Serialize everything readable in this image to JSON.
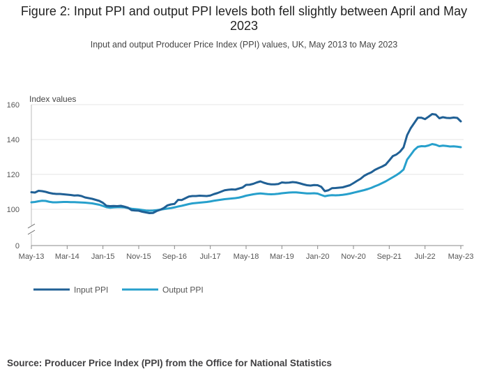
{
  "title": "Figure 2: Input PPI and output PPI levels both fell slightly between April and May 2023",
  "subtitle": "Input and output Producer Price Index (PPI) values, UK, May 2013 to May 2023",
  "source": "Source: Producer Price Index (PPI) from the Office for National Statistics",
  "chart_data": {
    "type": "line",
    "title": "Figure 2: Input PPI and output PPI levels both fell slightly between April and May 2023",
    "ylabel": "Index values",
    "xlabel": "",
    "ylim": [
      0,
      160
    ],
    "axis_break": true,
    "yticks": [
      0,
      100,
      120,
      140,
      160
    ],
    "xtick_labels": [
      "May-13",
      "Mar-14",
      "Jan-15",
      "Nov-15",
      "Sep-16",
      "Jul-17",
      "May-18",
      "Mar-19",
      "Jan-20",
      "Nov-20",
      "Sep-21",
      "Jul-22",
      "May-23"
    ],
    "xtick_index": [
      0,
      10,
      20,
      30,
      40,
      50,
      60,
      70,
      80,
      90,
      100,
      110,
      120
    ],
    "legend_position": "bottom-left",
    "grid": true,
    "series": [
      {
        "name": "Input PPI",
        "color": "#206095",
        "values": [
          109.8,
          109.6,
          110.6,
          110.4,
          110.0,
          109.4,
          109.0,
          108.8,
          108.8,
          108.6,
          108.4,
          108.2,
          107.9,
          108.0,
          107.6,
          106.8,
          106.4,
          106.0,
          105.4,
          104.8,
          103.7,
          102.0,
          101.8,
          101.9,
          101.8,
          102.0,
          101.5,
          100.9,
          99.5,
          99.3,
          99.2,
          98.6,
          98.2,
          97.8,
          97.9,
          99.0,
          99.7,
          100.7,
          102.2,
          102.8,
          103.1,
          105.4,
          105.3,
          106.3,
          107.3,
          107.6,
          107.6,
          107.8,
          107.7,
          107.6,
          107.9,
          108.7,
          109.3,
          110.1,
          110.9,
          111.2,
          111.4,
          111.3,
          111.9,
          112.5,
          114.0,
          114.1,
          114.6,
          115.4,
          116.0,
          115.2,
          114.6,
          114.3,
          114.3,
          114.5,
          115.4,
          115.2,
          115.3,
          115.6,
          115.4,
          114.9,
          114.3,
          113.8,
          113.6,
          113.9,
          113.8,
          112.9,
          110.4,
          110.9,
          112.1,
          112.2,
          112.4,
          112.6,
          113.2,
          113.8,
          115.0,
          116.3,
          117.5,
          119.2,
          120.3,
          121.2,
          122.6,
          123.6,
          124.5,
          125.6,
          128.0,
          130.5,
          131.4,
          133.0,
          135.5,
          142.5,
          146.5,
          149.5,
          152.5,
          152.5,
          151.7,
          153.1,
          154.6,
          154.3,
          152.2,
          152.8,
          152.4,
          152.3,
          152.6,
          152.4,
          150.4
        ]
      },
      {
        "name": "Output PPI",
        "color": "#27a0cc",
        "values": [
          104.0,
          104.2,
          104.6,
          104.9,
          104.8,
          104.3,
          104.0,
          104.0,
          104.1,
          104.2,
          104.2,
          104.1,
          104.1,
          104.0,
          103.9,
          103.8,
          103.6,
          103.4,
          103.0,
          102.6,
          101.9,
          101.2,
          100.9,
          101.1,
          101.2,
          101.2,
          101.1,
          100.7,
          100.3,
          100.1,
          99.9,
          99.6,
          99.3,
          99.2,
          99.3,
          99.5,
          99.8,
          100.1,
          100.4,
          100.7,
          101.1,
          101.6,
          102.0,
          102.5,
          103.0,
          103.4,
          103.6,
          103.8,
          104.0,
          104.2,
          104.5,
          104.9,
          105.2,
          105.5,
          105.8,
          106.0,
          106.2,
          106.4,
          106.7,
          107.2,
          107.8,
          108.2,
          108.6,
          108.9,
          109.1,
          108.9,
          108.7,
          108.6,
          108.7,
          108.9,
          109.2,
          109.4,
          109.6,
          109.7,
          109.7,
          109.5,
          109.3,
          109.1,
          109.1,
          109.2,
          109.0,
          108.2,
          107.5,
          107.9,
          108.1,
          108.0,
          108.1,
          108.3,
          108.6,
          109.0,
          109.5,
          110.0,
          110.5,
          111.0,
          111.6,
          112.3,
          113.2,
          114.0,
          115.0,
          116.0,
          117.2,
          118.4,
          119.6,
          121.0,
          122.8,
          128.5,
          131.2,
          134.0,
          135.8,
          136.2,
          136.1,
          136.6,
          137.4,
          137.0,
          136.2,
          136.5,
          136.3,
          136.0,
          136.1,
          135.9,
          135.6
        ]
      }
    ]
  }
}
